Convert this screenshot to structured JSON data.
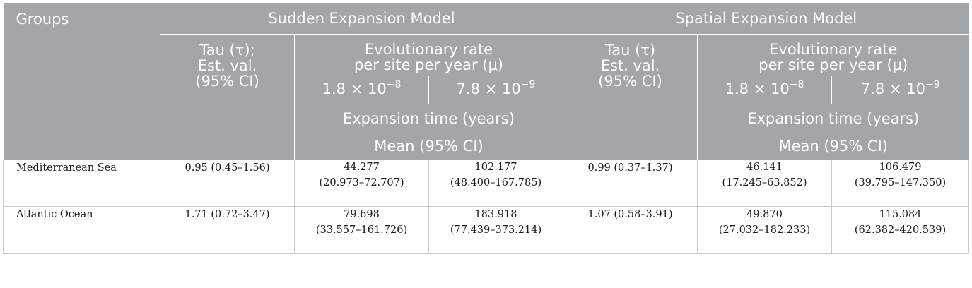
{
  "header": {
    "groups": "Groups",
    "sudden_model": "Sudden Expansion Model",
    "spatial_model": "Spatial Expansion Model",
    "sudden_tau": [
      "Tau (τ);",
      "Est. val.",
      "(95% CI)"
    ],
    "spatial_tau": [
      "Tau (τ)",
      "Est. val.",
      "(95% CI)"
    ],
    "rate": [
      "Evolutionary rate",
      "per site per year (μ)"
    ],
    "rate_a": "1.8 × 10",
    "rate_a_exp": "−8",
    "rate_b": "7.8 × 10",
    "rate_b_exp": "−9",
    "expansion_time": "Expansion time (years)",
    "mean_ci": "Mean (95% CI)"
  },
  "rows": [
    {
      "group": "Mediterranean Sea",
      "sudden_tau": "0.95 (0.45–1.56)",
      "sudden_a": [
        "44.277",
        "(20.973–72.707)"
      ],
      "sudden_b": [
        "102.177",
        "(48.400–167.785)"
      ],
      "spatial_tau": "0.99 (0.37–1.37)",
      "spatial_a": [
        "46.141",
        "(17.245–63.852)"
      ],
      "spatial_b": [
        "106.479",
        "(39.795–147.350)"
      ]
    },
    {
      "group": "Atlantic Ocean",
      "sudden_tau": "1.71 (0.72–3.47)",
      "sudden_a": [
        "79.698",
        "(33.557–161.726)"
      ],
      "sudden_b": [
        "183.918",
        "(77.439–373.214)"
      ],
      "spatial_tau": "1.07 (0.58–3.91)",
      "spatial_a": [
        "49.870",
        "(27.032–182.233)"
      ],
      "spatial_b": [
        "115.084",
        "(62.382–420.539)"
      ]
    }
  ]
}
